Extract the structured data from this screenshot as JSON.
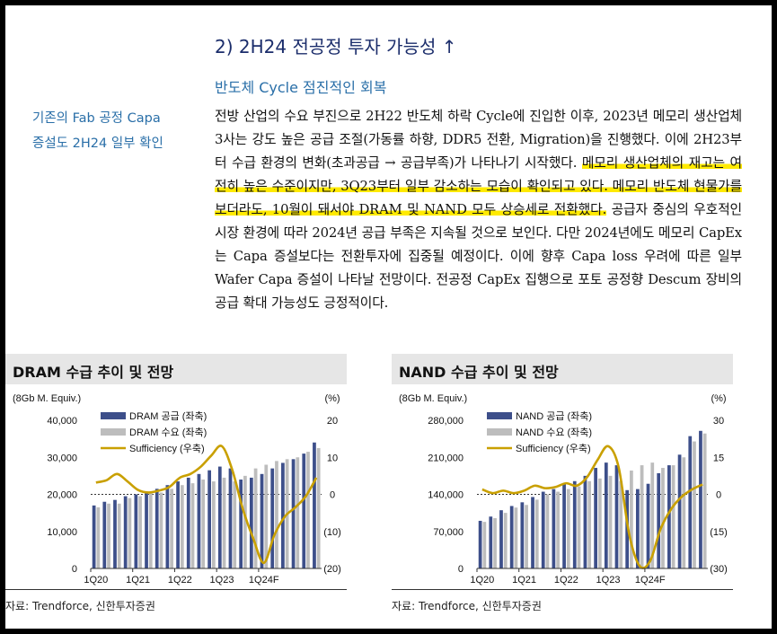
{
  "section": {
    "title": "2) 2H24 전공정 투자 가능성 ↑",
    "subtitle": "반도체 Cycle 점진적인 회복"
  },
  "side_note": {
    "line1": "기존의 Fab 공정 Capa",
    "line2": "증설도 2H24 일부 확인"
  },
  "body": {
    "part1": "전방 산업의 수요 부진으로 2H22 반도체 하락 Cycle에 진입한 이후, 2023년 메모리 생산업체 3사는 강도 높은 공급 조절(가동률 하향, DDR5 전환, Migration)을 진행했다. 이에 2H23부터 수급 환경의 변화(초과공급 → 공급부족)가 나타나기 시작했다. ",
    "highlight": "메모리 생산업체의 재고는 여전히 높은 수준이지만, 3Q23부터 일부 감소하는 모습이 확인되고 있다. 메모리 반도체 현물가를 보더라도, 10월이 돼서야 DRAM 및 NAND 모두 상승세로 전환했다.",
    "part2": " 공급자 중심의 우호적인 시장 환경에 따라 2024년 공급 부족은 지속될 것으로 보인다. 다만 2024년에도 메모리 CapEx는 Capa 증설보다는 전환투자에 집중될 예정이다. 이에 향후 Capa loss 우려에 따른 일부 Wafer Capa 증설이 나타날 전망이다. 전공정 CapEx 집행으로 포토 공정향 Descum 장비의 공급 확대 가능성도 긍정적이다."
  },
  "colors": {
    "supply": "#3d4f8a",
    "demand": "#bdbdbd",
    "sufficiency": "#c9a000",
    "title_blue": "#1b2d6b",
    "accent_blue": "#2a6fa8",
    "highlight": "#ffea00"
  },
  "chart_data": [
    {
      "type": "bar",
      "title": "DRAM 수급 추이 및 전망",
      "y_unit_left": "(8Gb M. Equiv.)",
      "y_unit_right": "(%)",
      "x_ticks": [
        "1Q20",
        "1Q21",
        "1Q22",
        "1Q23",
        "1Q24F"
      ],
      "x_tick_index": [
        0,
        4,
        8,
        12,
        16
      ],
      "ylim_left": [
        0,
        40000
      ],
      "y_ticks_left": [
        "40,000",
        "30,000",
        "20,000",
        "10,000",
        "0"
      ],
      "ylim_right": [
        -20,
        20
      ],
      "y_ticks_right": [
        "20",
        "10",
        "0",
        "(10)",
        "(20)"
      ],
      "legend": [
        "DRAM 공급 (좌축)",
        "DRAM 수요 (좌축)",
        "Sufficiency (우축)"
      ],
      "source": "자료: Trendforce, 신한투자증권",
      "series": [
        {
          "name": "DRAM 공급 (좌축)",
          "values": [
            17000,
            18000,
            18500,
            19500,
            20000,
            20500,
            21500,
            22500,
            23500,
            24500,
            25500,
            26500,
            27500,
            27000,
            24000,
            24500,
            25500,
            27000,
            28500,
            29500,
            31000,
            34000
          ]
        },
        {
          "name": "DRAM 수요 (좌축)",
          "values": [
            16500,
            17500,
            17500,
            19000,
            19500,
            20500,
            20500,
            21500,
            22500,
            23000,
            24000,
            23500,
            24500,
            23500,
            25000,
            27000,
            28000,
            29000,
            29500,
            30000,
            31500,
            32500
          ]
        },
        {
          "name": "Sufficiency (우축)",
          "values": [
            3.2,
            3.8,
            5.5,
            3.5,
            1.2,
            0.5,
            1.0,
            2.0,
            4.5,
            5.5,
            7.5,
            10.5,
            13.0,
            6.5,
            -4.0,
            -12.0,
            -18.5,
            -11.0,
            -6.0,
            -3.5,
            -0.5,
            4.5
          ]
        }
      ]
    },
    {
      "type": "bar",
      "title": "NAND 수급 추이 및 전망",
      "y_unit_left": "(8Gb M. Equiv.)",
      "y_unit_right": "(%)",
      "x_ticks": [
        "1Q20",
        "1Q21",
        "1Q22",
        "1Q23",
        "1Q24F"
      ],
      "x_tick_index": [
        0,
        4,
        8,
        12,
        16
      ],
      "ylim_left": [
        0,
        280000
      ],
      "y_ticks_left": [
        "280,000",
        "210,000",
        "140,000",
        "70,000",
        "0"
      ],
      "ylim_right": [
        -30,
        30
      ],
      "y_ticks_right": [
        "30",
        "15",
        "0",
        "(15)",
        "(30)"
      ],
      "legend": [
        "NAND 공급 (좌축)",
        "NAND 수요 (좌축)",
        "Sufficiency (우축)"
      ],
      "source": "자료: Trendforce, 신한투자증권",
      "series": [
        {
          "name": "NAND 공급 (좌축)",
          "values": [
            90000,
            98000,
            110000,
            118000,
            125000,
            135000,
            145000,
            150000,
            160000,
            165000,
            175000,
            190000,
            200000,
            195000,
            148000,
            150000,
            160000,
            180000,
            195000,
            215000,
            250000,
            260000
          ]
        },
        {
          "name": "NAND 수요 (좌축)",
          "values": [
            88000,
            95000,
            105000,
            115000,
            120000,
            130000,
            140000,
            145000,
            150000,
            155000,
            165000,
            170000,
            175000,
            165000,
            185000,
            195000,
            200000,
            190000,
            195000,
            210000,
            240000,
            255000
          ]
        },
        {
          "name": "Sufficiency (우축)",
          "values": [
            2.0,
            0.5,
            1.5,
            0.5,
            1.5,
            3.5,
            2.5,
            3.0,
            4.5,
            3.5,
            7.0,
            14.0,
            19.5,
            11.0,
            -16.0,
            -29.0,
            -27.0,
            -14.0,
            -6.0,
            -1.0,
            2.0,
            4.0
          ]
        }
      ]
    }
  ]
}
